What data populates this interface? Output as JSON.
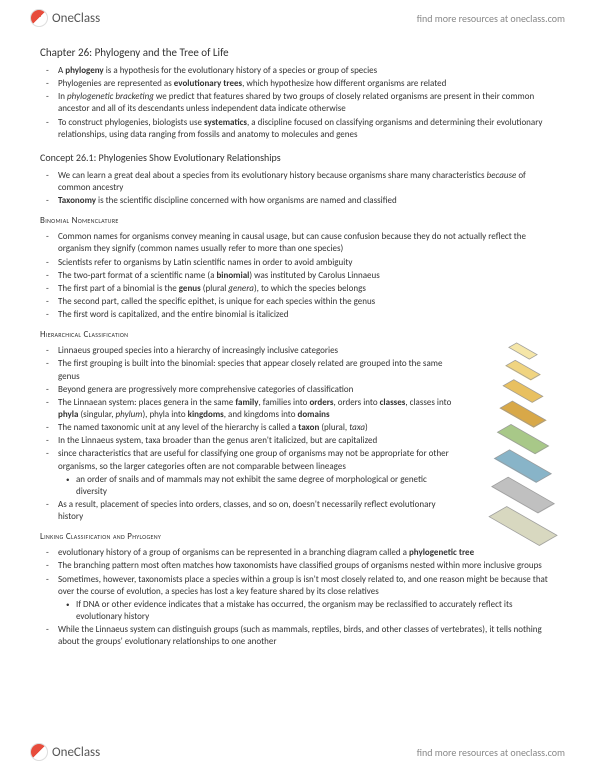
{
  "brand": {
    "name": "OneClass",
    "tagline": "find more resources at oneclass.com"
  },
  "chapter": {
    "title": "Chapter 26: Phylogeny and the Tree of Life"
  },
  "intro": [
    "A <b>phylogeny</b> is a hypothesis for the evolutionary history of a species or group of species",
    "Phylogenies are represented as <b>evolutionary trees</b>, which hypothesize how different organisms are related",
    "In <i>phylogenetic bracketing</i> we predict that features shared by two groups of closely related organisms are present in their common ancestor and all of its descendants unless independent data indicate otherwise",
    "To construct phylogenies, biologists use <b>systematics</b>, a discipline focused on classifying organisms and determining their evolutionary relationships, using data ranging from fossils and anatomy to molecules and genes"
  ],
  "concept": {
    "title": "Concept 26.1: Phylogenies Show Evolutionary Relationships",
    "items": [
      "We can learn a great deal about a species from its evolutionary history because organisms share many characteristics <i>because</i> of common ancestry",
      "<b>Taxonomy</b> is the scientific discipline concerned with how organisms are named and classified"
    ]
  },
  "binomial": {
    "title": "Binomial Nomenclature",
    "items": [
      "Common names for organisms convey meaning in causal usage, but can cause confusion because they do not actually reflect the organism they signify (common names usually refer to more than one species)",
      "Scientists refer to organisms by Latin scientific names in order to avoid ambiguity",
      "The two-part format of a scientific name (a <b>binomial</b>) was instituted by Carolus Linnaeus",
      "The first part of a binomial is the <b>genus</b> (plural <i>genera</i>), to which the species belongs",
      "The second part, called the specific epithet, is unique for each species within the genus",
      "The first word is capitalized, and the entire binomial is italicized"
    ]
  },
  "hierarchical": {
    "title": "Hierarchical Classification",
    "items": [
      "Linnaeus grouped species into a hierarchy of increasingly inclusive categories",
      "The first grouping is built into the binomial: species that appear closely related are grouped into the same genus",
      "Beyond genera are progressively more comprehensive categories of classification",
      "The Linnaean system: places genera in the same <b>family</b>, families into <b>orders</b>, orders into <b>classes</b>, classes into <b>phyla</b> (singular, <i>phylum</i>), phyla into <b>kingdoms</b>, and kingdoms into <b>domains</b>",
      "The named taxonomic unit at any level of the hierarchy is called a <b>taxon</b> (plural, <i>taxa</i>)",
      "In the Linnaeus system, taxa broader than the genus aren't italicized, but are capitalized",
      "since characteristics that are useful for classifying one group of organisms may not be appropriate for other organisms, so the larger categories often are not comparable between lineages"
    ],
    "sub": [
      "an order of snails and of mammals may not exhibit the same degree of morphological or genetic diversity"
    ],
    "after": [
      "As a result, placement of species into orders, classes, and so on, doesn't necessarily reflect evolutionary history"
    ]
  },
  "linking": {
    "title": "Linking Classification and Phylogeny",
    "items": [
      "evolutionary history of a group of organisms can be represented in a branching diagram called a <b>phylogenetic tree</b>",
      "The branching pattern most often matches how taxonomists have classified groups of organisms nested within more inclusive groups",
      "Sometimes, however, taxonomists place a species within a group is isn't most closely related to, and one reason might be because that over the course of evolution, a species has lost a key feature shared by its close relatives"
    ],
    "sub": [
      "If DNA or other evidence indicates that a mistake has occurred, the organism may be reclassified to accurately reflect its evolutionary history"
    ],
    "after": [
      "While the Linnaeus system can distinguish groups (such as mammals, reptiles, birds, and other classes of vertebrates), it tells nothing about the groups' evolutionary relationships to one another"
    ]
  }
}
